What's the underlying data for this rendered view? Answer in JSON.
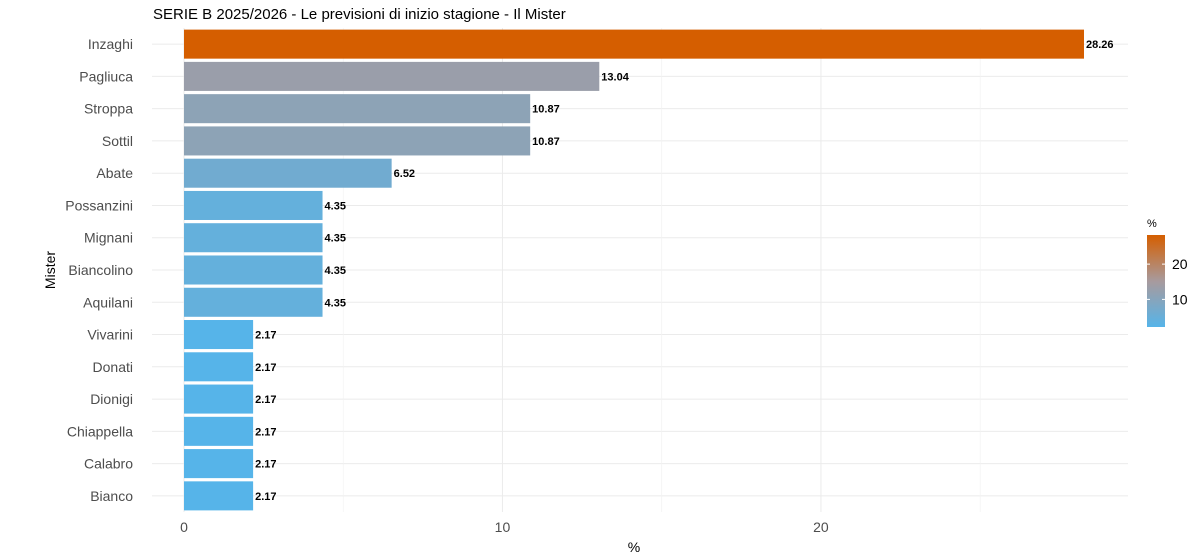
{
  "chart_data": {
    "type": "bar",
    "orientation": "horizontal",
    "title": "SERIE B 2025/2026 - Le previsioni di inizio stagione - Il Mister",
    "xlabel": "%",
    "ylabel": "Mister",
    "categories": [
      "Inzaghi",
      "Pagliuca",
      "Stroppa",
      "Sottil",
      "Abate",
      "Possanzini",
      "Mignani",
      "Biancolino",
      "Aquilani",
      "Vivarini",
      "Donati",
      "Dionigi",
      "Chiappella",
      "Calabro",
      "Bianco"
    ],
    "values": [
      28.26,
      13.04,
      10.87,
      10.87,
      6.52,
      4.35,
      4.35,
      4.35,
      4.35,
      2.17,
      2.17,
      2.17,
      2.17,
      2.17,
      2.17
    ],
    "value_labels": [
      "28.26",
      "13.04",
      "10.87",
      "10.87",
      "6.52",
      "4.35",
      "4.35",
      "4.35",
      "4.35",
      "2.17",
      "2.17",
      "2.17",
      "2.17",
      "2.17",
      "2.17"
    ],
    "xlim": [
      0,
      29.5
    ],
    "x_ticks": [
      0,
      10,
      20
    ],
    "x_tick_labels": [
      "0",
      "10",
      "20"
    ],
    "grid": true,
    "color_scale": {
      "low": "#56b4e9",
      "mid": "#a89a9d",
      "high": "#d55e00",
      "range": [
        2.17,
        28.26
      ]
    },
    "legend": {
      "title": "%",
      "ticks": [
        10,
        20
      ],
      "tick_labels": [
        "10",
        "20"
      ],
      "placement": "right"
    }
  }
}
